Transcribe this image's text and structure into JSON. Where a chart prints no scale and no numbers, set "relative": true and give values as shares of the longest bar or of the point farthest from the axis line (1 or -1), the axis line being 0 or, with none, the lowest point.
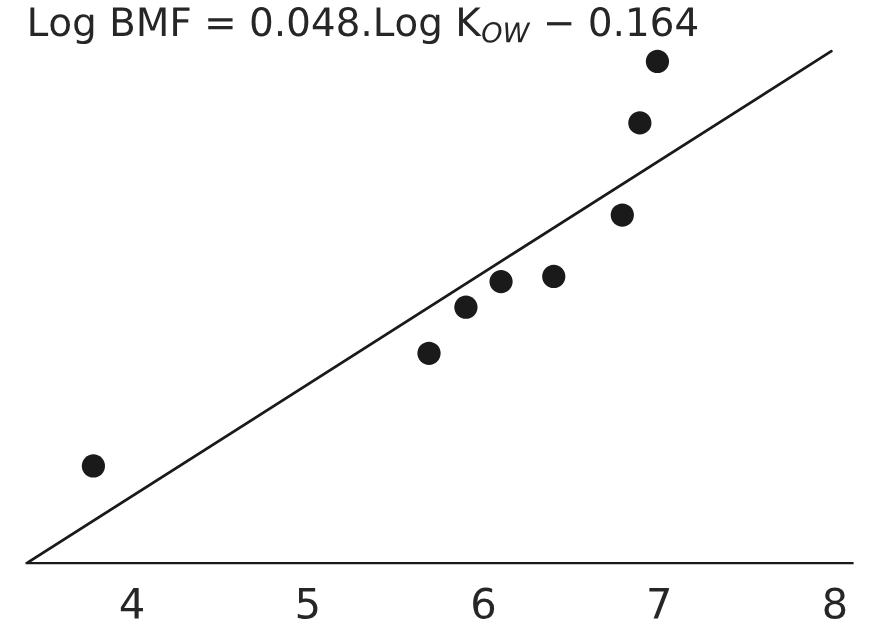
{
  "chart_data": {
    "type": "scatter",
    "relative": true,
    "xlim": [
      3.4,
      8.1
    ],
    "xticks": [
      4,
      5,
      6,
      7,
      8
    ],
    "annotations": [
      "Log BMF = 0.048.Log K$_{OW}$ − 0.164"
    ],
    "grid": false,
    "series": [
      {
        "color": "#1a1a1a",
        "marker": "circle",
        "x": [
          3.78,
          5.69,
          5.9,
          6.1,
          6.4,
          6.79,
          6.89,
          6.99
        ],
        "values": [
          0.19,
          0.41,
          0.5,
          0.55,
          0.56,
          0.68,
          0.86,
          0.98
        ]
      },
      {
        "type": "line",
        "color": "#1a1a1a",
        "x": [
          3.4,
          7.98
        ],
        "values": [
          0,
          1
        ]
      }
    ]
  }
}
